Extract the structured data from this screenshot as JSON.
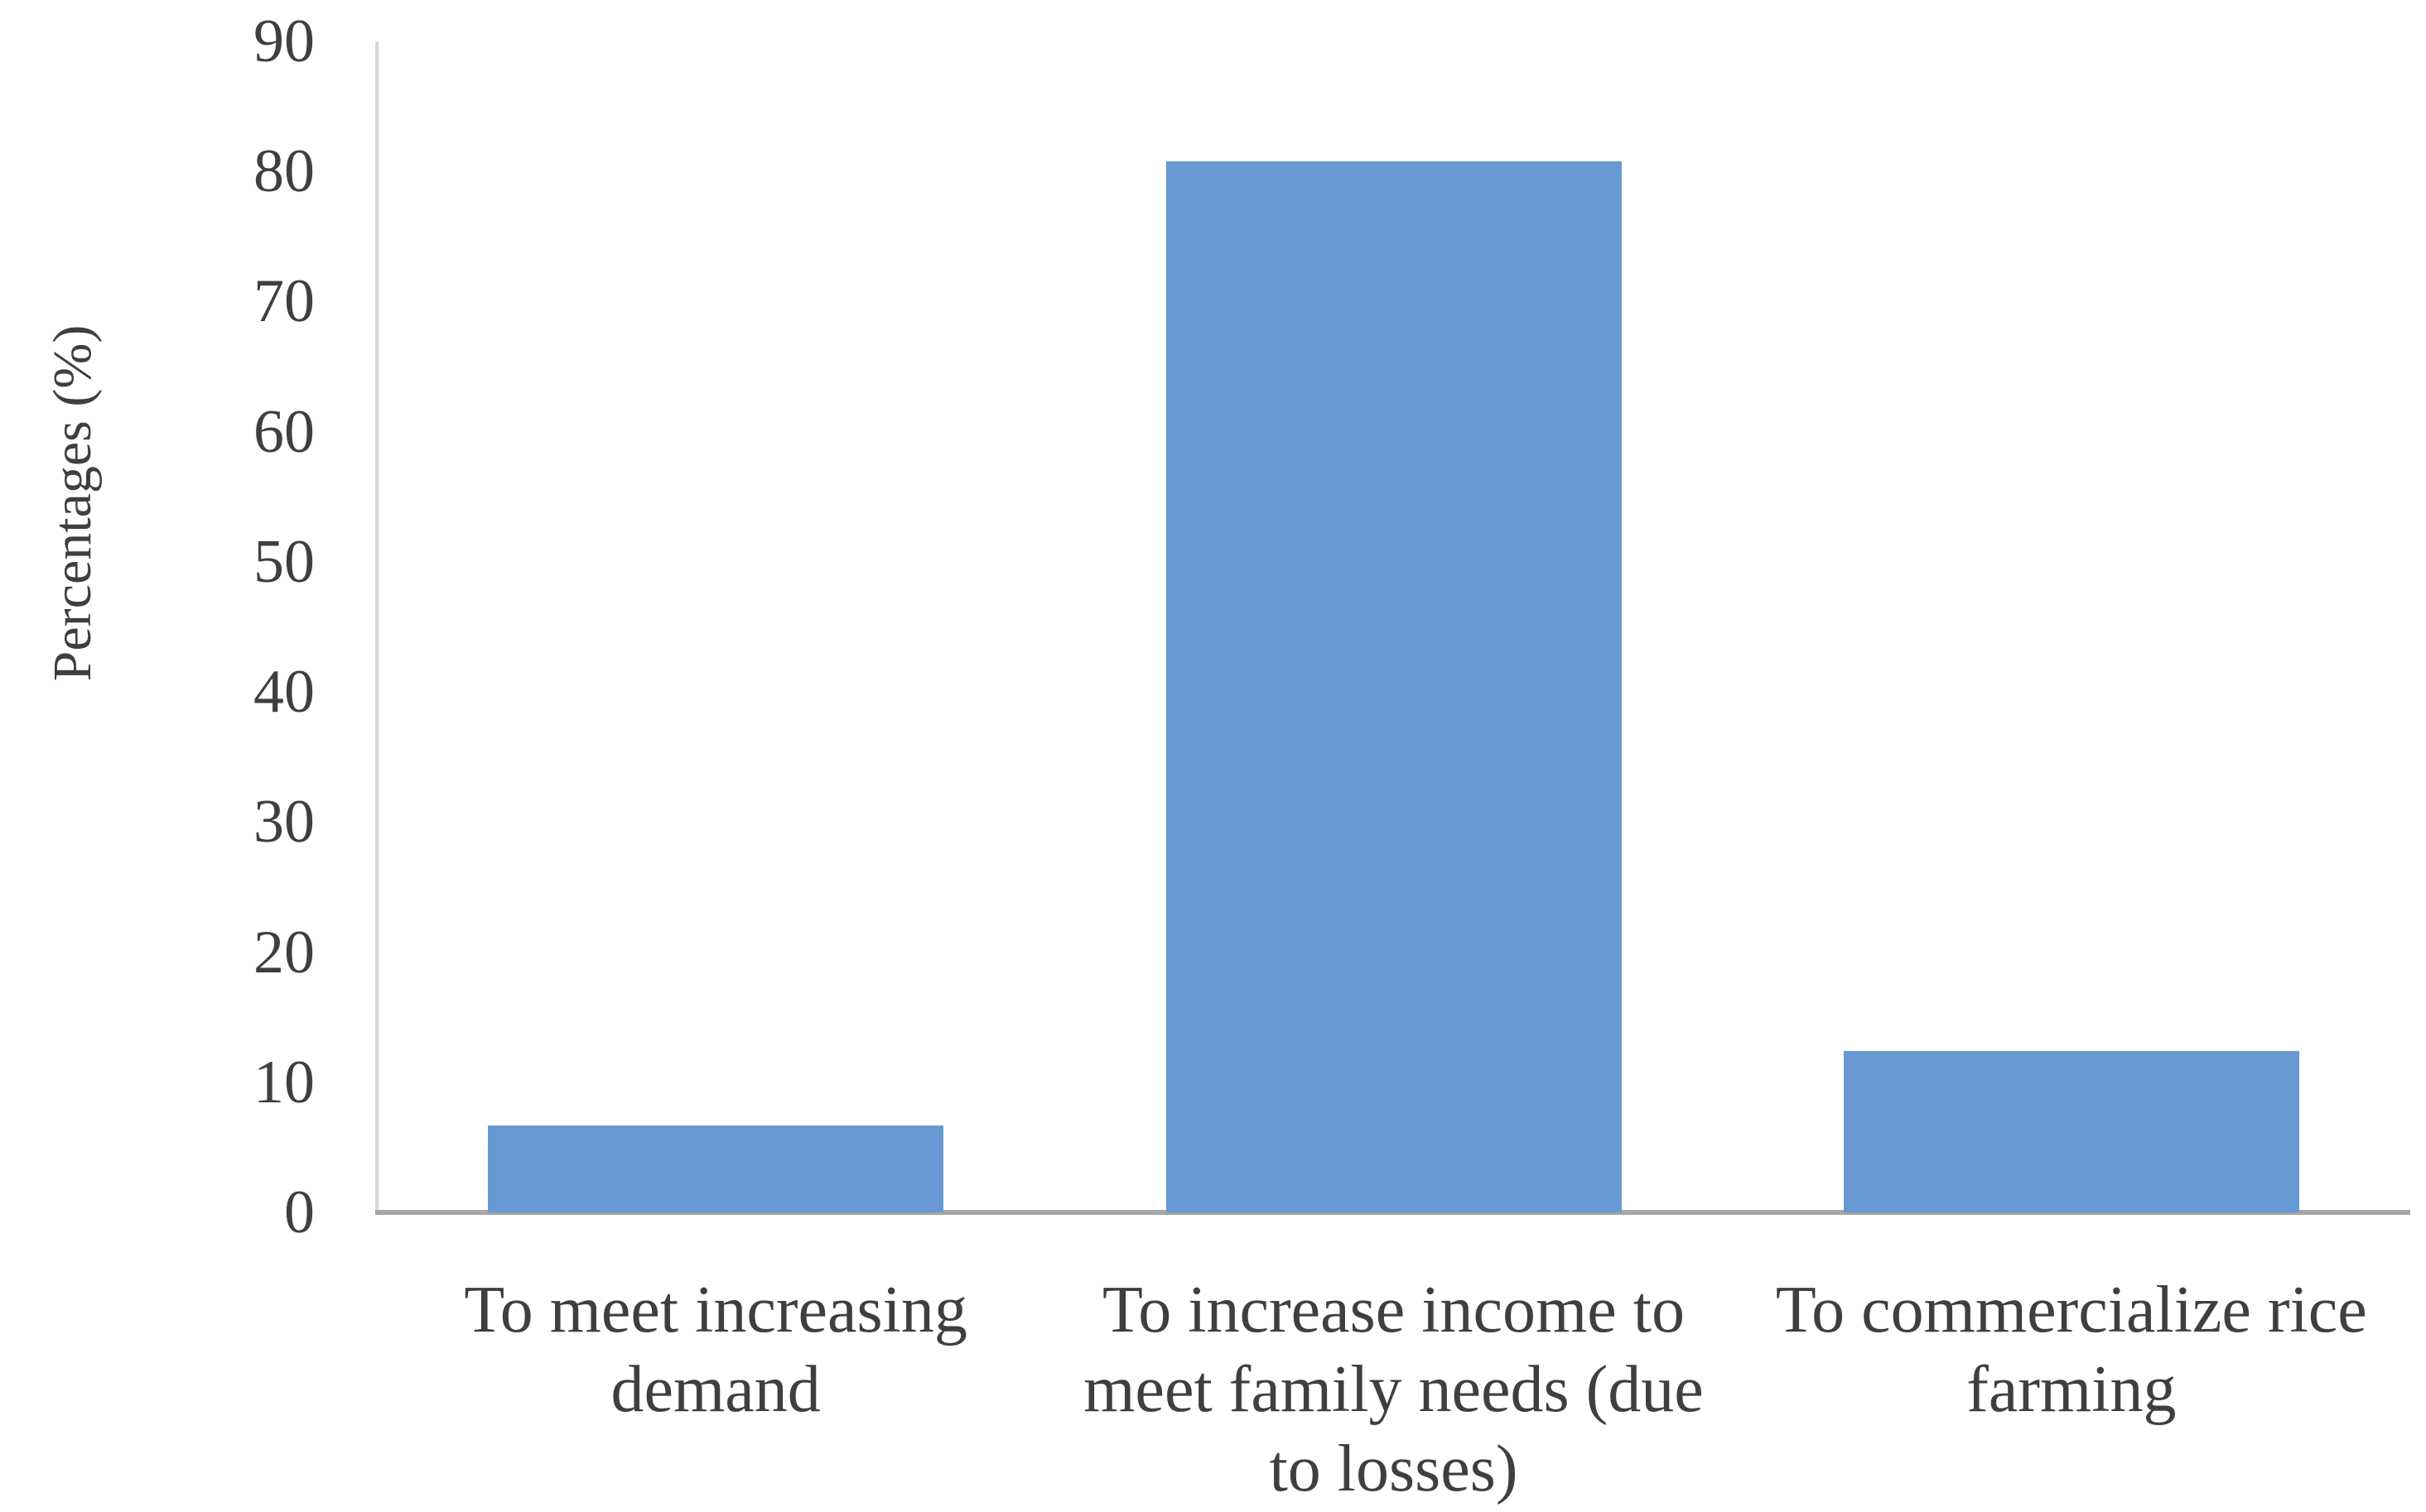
{
  "colors": {
    "bar_fill": "#6899D3",
    "y_axis_line": "#D9D9D9",
    "x_axis_line": "#A6A6A6",
    "text": "#3F3F3F",
    "background": "#FFFFFF"
  },
  "chart_data": {
    "type": "bar",
    "title": "",
    "ylabel": "Percentages (%)",
    "xlabel": "",
    "categories": [
      "To meet increasing\ndemand",
      "To increase income to\nmeet family needs (due\nto losses)",
      "To commercialize rice\nfarming"
    ],
    "values": [
      6.7,
      80.8,
      12.4
    ],
    "ylim": [
      0,
      90
    ],
    "yticks": [
      0,
      10,
      20,
      30,
      40,
      50,
      60,
      70,
      80,
      90
    ],
    "grid": false,
    "legend": false,
    "bar_color": "#6899D3"
  }
}
